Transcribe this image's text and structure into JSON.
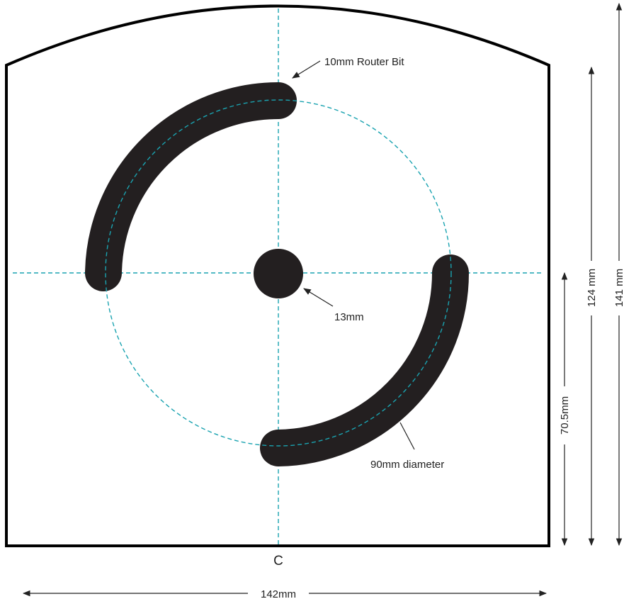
{
  "labels": {
    "router_bit": "10mm Router Bit",
    "center_hole": "13mm",
    "circle_diameter": "90mm diameter",
    "center_mark": "C",
    "width": "142mm",
    "height_center": "70.5mm",
    "height_shoulder": "124 mm",
    "height_total": "141 mm"
  },
  "colors": {
    "outline": "#000000",
    "slot_fill": "#231f20",
    "guide_line": "#1aa3b0",
    "dimension_line": "#222222"
  }
}
